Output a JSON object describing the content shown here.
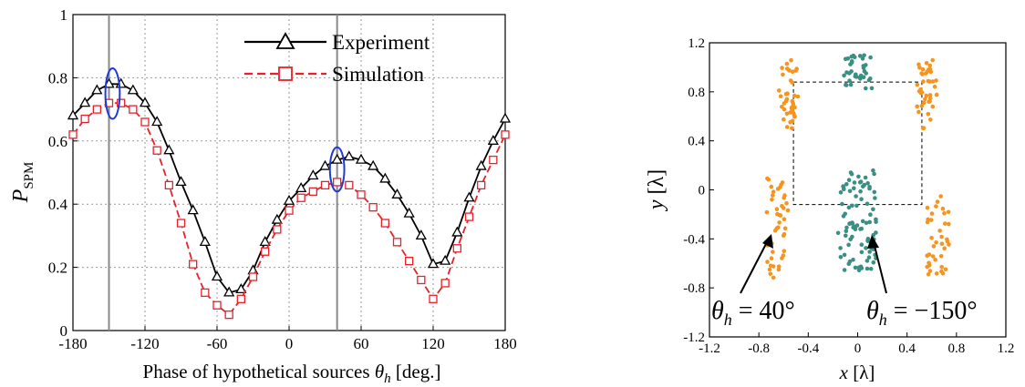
{
  "colors": {
    "experiment": "#000000",
    "simulation": "#e8212a",
    "highlight": "#1f3bd6",
    "orange": "#f7941d",
    "teal": "#3a8f84",
    "marker_line": "#8a8a8a"
  },
  "chart_data": [
    {
      "type": "line",
      "title": "",
      "xlabel": "Phase of hypothetical sources",
      "xlabel_symbol": "θ",
      "xlabel_sub": "h",
      "xlabel_unit": " [deg.]",
      "ylabel": "P",
      "ylabel_sub": "SPM",
      "xlim": [
        -180,
        180
      ],
      "ylim": [
        0,
        1
      ],
      "x_ticks": [
        -180,
        -120,
        -60,
        0,
        60,
        120,
        180
      ],
      "x_tick_labels": [
        "-180",
        "-120",
        "-60",
        "0",
        "60",
        "120",
        "180"
      ],
      "y_ticks": [
        0,
        0.2,
        0.4,
        0.6,
        0.8,
        1
      ],
      "y_tick_labels": [
        "0",
        "0.2",
        "0.4",
        "0.6",
        "0.8",
        "1"
      ],
      "grid": true,
      "legend_position": "top-right",
      "vertical_markers": [
        -150,
        40
      ],
      "highlight_ellipses": [
        {
          "x": -147,
          "y": 0.75,
          "rx": 6,
          "ry": 0.08
        },
        {
          "x": 40,
          "y": 0.51,
          "rx": 6,
          "ry": 0.07
        }
      ],
      "x": [
        -180,
        -170,
        -160,
        -150,
        -140,
        -130,
        -120,
        -110,
        -100,
        -90,
        -80,
        -70,
        -60,
        -50,
        -40,
        -30,
        -20,
        -10,
        0,
        10,
        20,
        30,
        40,
        50,
        60,
        70,
        80,
        90,
        100,
        110,
        120,
        130,
        140,
        150,
        160,
        170,
        180
      ],
      "series": [
        {
          "name": "Experiment",
          "marker": "triangle",
          "values": [
            0.68,
            0.72,
            0.76,
            0.78,
            0.78,
            0.76,
            0.72,
            0.66,
            0.57,
            0.47,
            0.38,
            0.28,
            0.17,
            0.12,
            0.13,
            0.19,
            0.28,
            0.35,
            0.41,
            0.45,
            0.49,
            0.52,
            0.54,
            0.55,
            0.54,
            0.52,
            0.48,
            0.43,
            0.37,
            0.3,
            0.21,
            0.22,
            0.31,
            0.42,
            0.52,
            0.6,
            0.67
          ]
        },
        {
          "name": "Simulation",
          "marker": "square",
          "values": [
            0.62,
            0.67,
            0.7,
            0.72,
            0.72,
            0.7,
            0.66,
            0.57,
            0.46,
            0.34,
            0.21,
            0.12,
            0.08,
            0.05,
            0.1,
            0.17,
            0.25,
            0.32,
            0.38,
            0.42,
            0.44,
            0.46,
            0.47,
            0.46,
            0.43,
            0.39,
            0.34,
            0.28,
            0.22,
            0.16,
            0.1,
            0.15,
            0.26,
            0.36,
            0.46,
            0.54,
            0.62
          ]
        }
      ]
    },
    {
      "type": "scatter",
      "title": "",
      "xlabel": "x",
      "xlabel_unit": "[λ]",
      "ylabel": "y",
      "ylabel_unit": "[λ]",
      "xlim": [
        -1.2,
        1.2
      ],
      "ylim": [
        -1.2,
        1.2
      ],
      "x_ticks": [
        -1.2,
        -0.8,
        -0.4,
        0,
        0.4,
        0.8,
        1.2
      ],
      "x_tick_labels": [
        "-1.2",
        "-0.8",
        "-0.4",
        "0",
        "0.4",
        "0.8",
        "1.2"
      ],
      "y_ticks": [
        -1.2,
        -0.8,
        -0.4,
        0,
        0.4,
        0.8,
        1.2
      ],
      "y_tick_labels": [
        "-1.2",
        "-0.8",
        "-0.4",
        "0",
        "0.4",
        "0.8",
        "1.2"
      ],
      "grid": false,
      "dashed_box": {
        "x": [
          -0.52,
          0.52
        ],
        "y": [
          -0.12,
          0.88
        ]
      },
      "clusters": [
        {
          "color_key": "orange",
          "x_range": [
            -0.64,
            -0.48
          ],
          "y_range": [
            0.5,
            1.06
          ],
          "count": 40
        },
        {
          "color_key": "orange",
          "x_range": [
            0.48,
            0.64
          ],
          "y_range": [
            0.5,
            1.06
          ],
          "count": 40
        },
        {
          "color_key": "teal",
          "x_range": [
            -0.12,
            0.12
          ],
          "y_range": [
            0.82,
            1.1
          ],
          "count": 36
        },
        {
          "color_key": "orange",
          "x_range": [
            -0.74,
            -0.56
          ],
          "y_range": [
            -0.72,
            0.1
          ],
          "count": 44
        },
        {
          "color_key": "orange",
          "x_range": [
            0.56,
            0.74
          ],
          "y_range": [
            -0.72,
            -0.04
          ],
          "count": 38
        },
        {
          "color_key": "teal",
          "x_range": [
            -0.16,
            0.16
          ],
          "y_range": [
            -0.66,
            0.16
          ],
          "count": 90
        }
      ],
      "annotations": [
        {
          "symbol": "θ",
          "sub": "h",
          "text": " = 40°",
          "arrow_to": [
            -0.78,
            -0.38
          ]
        },
        {
          "symbol": "θ",
          "sub": "h",
          "text": " = −150°",
          "arrow_to": [
            0.12,
            -0.38
          ]
        }
      ]
    }
  ]
}
